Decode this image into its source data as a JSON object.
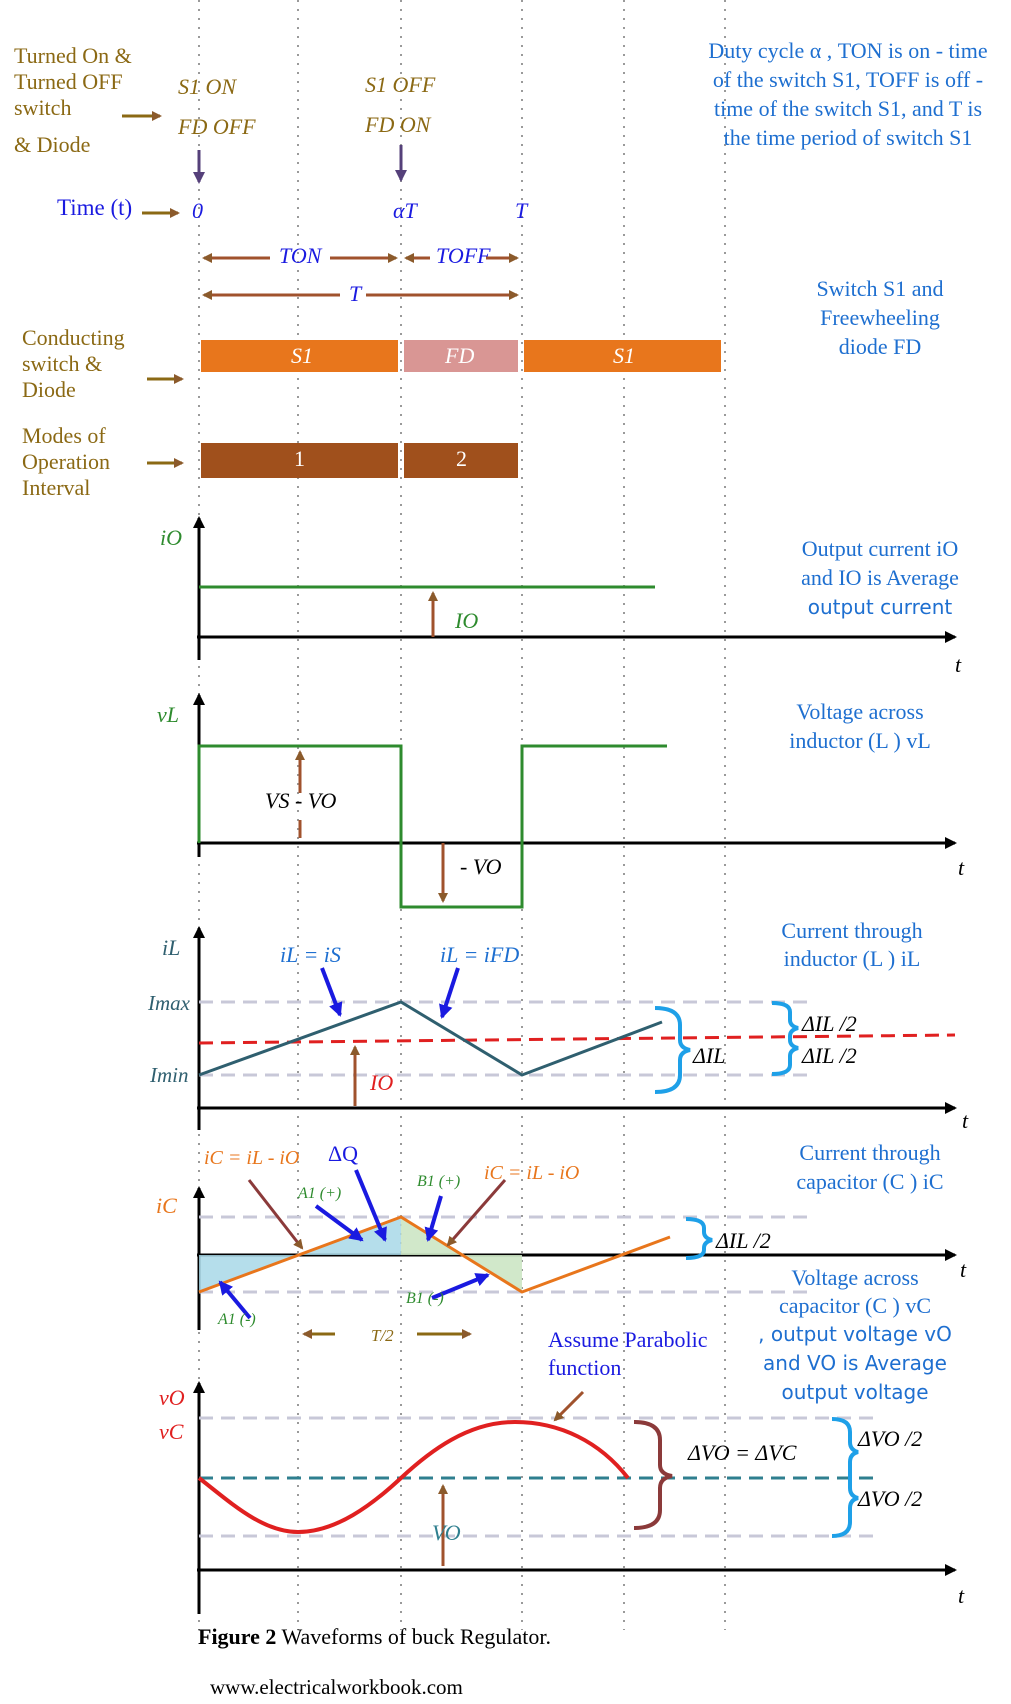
{
  "colors": {
    "brown": "#8B6914",
    "darkbrown": "#A0522D",
    "orange": "#E8761C",
    "pink": "#D99694",
    "mode": "#A0501C",
    "green": "#2E8B2E",
    "teal": "#2F5F6F",
    "red": "#E02020",
    "blue": "#1E6FD0",
    "cyan": "#1EA0E8",
    "navy": "#1A1AE0",
    "grey": "#C8C8D8"
  },
  "left_labels": {
    "switching_1": "Turned On &",
    "switching_2": "Turned OFF",
    "switching_3": "switch",
    "switching_4": "& Diode",
    "time": "Time (t)",
    "conducting_1": "Conducting",
    "conducting_2": "switch &",
    "conducting_3": "Diode",
    "modes_1": "Modes of",
    "modes_2": "Operation",
    "modes_3": "Interval"
  },
  "events": {
    "s1_on": "S1  ON",
    "fd_off": "FD  OFF",
    "s1_off": "S1  OFF",
    "fd_on": "FD  ON"
  },
  "time_marks": {
    "zero": "0",
    "alpha_t": "αT",
    "t": "T",
    "t_on": "TON",
    "t_off": "TOFF",
    "period": "T"
  },
  "bars": {
    "conducting": [
      "S1",
      "FD",
      "S1"
    ],
    "modes": [
      "1",
      "2"
    ]
  },
  "right_notes": {
    "duty_1": "Duty cycle α , TON is on - time",
    "duty_2": "of the switch S1, TOFF is off -",
    "duty_3": "time of the switch S1, and T is",
    "duty_4": "the time period of switch S1",
    "switch_1": "Switch S1 and",
    "switch_2": "Freewheeling",
    "switch_3": "diode FD",
    "io_1": "Output current iO",
    "io_2": "and IO is Average",
    "io_3": "output current",
    "vl_1": "Voltage across",
    "vl_2": "inductor (L ) vL",
    "il_1": "Current through",
    "il_2": "inductor (L ) iL",
    "ic_1": "Current through",
    "ic_2": "capacitor (C ) iC",
    "vc_1": "Voltage across",
    "vc_2": "capacitor (C ) vC",
    "vc_3": ", output voltage vO",
    "vc_4": "and VO is Average",
    "vc_5": "output voltage"
  },
  "plot_labels": {
    "io_axis": "iO",
    "io_avg": "IO",
    "vl_axis": "vL",
    "vl_pos": "VS - VO",
    "vl_neg": "- VO",
    "il_axis": "iL",
    "il_is": "iL = iS",
    "il_ifd": "iL = iFD",
    "imax": "Imax",
    "imin": "Imin",
    "il_avg": "IO",
    "delta_il": "ΔIL",
    "delta_il_half_1": "ΔIL /2",
    "delta_il_half_2": "ΔIL /2",
    "ic_axis": "iC",
    "ic_eq_1": "iC = iL - iO",
    "ic_eq_2": "iC = iL - iO",
    "delta_q": "ΔQ",
    "a1_plus": "A1 (+)",
    "a1_minus": "A1 (-)",
    "b1_plus": "B1 (+)",
    "b1_minus": "B1 (-)",
    "t_half": "T/2",
    "ic_half": "ΔIL /2",
    "parabolic_1": "Assume Parabolic",
    "parabolic_2": "function",
    "vo_axis": "vO",
    "vc_axis": "vC",
    "delta_vo": "ΔVO = ΔVC",
    "delta_vo_half_1": "ΔVO /2",
    "delta_vo_half_2": "ΔVO /2",
    "vo_avg": "VO",
    "t_axis": "t"
  },
  "caption": {
    "bold": "Figure 2",
    "text": " Waveforms of buck Regulator.",
    "website": "www.electricalworkbook.com"
  }
}
